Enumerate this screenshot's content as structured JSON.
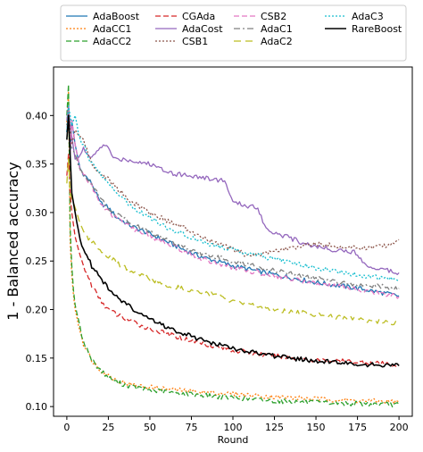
{
  "chart_data": {
    "type": "line",
    "xlabel": "Round",
    "ylabel": "1 - Balanced accuracy",
    "xlim": [
      -8,
      208
    ],
    "ylim": [
      0.09,
      0.45
    ],
    "xticks": [
      0,
      25,
      50,
      75,
      100,
      125,
      150,
      175,
      200
    ],
    "yticks": [
      0.1,
      0.15,
      0.2,
      0.25,
      0.3,
      0.35,
      0.4
    ],
    "legend": "top, outside plot, 4 columns",
    "series": [
      {
        "name": "AdaBoost",
        "color": "#1f77b4",
        "dash": "solid",
        "width": 1.3,
        "points": [
          [
            0,
            0.383
          ],
          [
            1,
            0.405
          ],
          [
            2,
            0.36
          ],
          [
            3,
            0.395
          ],
          [
            5,
            0.37
          ],
          [
            8,
            0.345
          ],
          [
            10,
            0.34
          ],
          [
            15,
            0.33
          ],
          [
            20,
            0.31
          ],
          [
            25,
            0.305
          ],
          [
            30,
            0.295
          ],
          [
            40,
            0.285
          ],
          [
            50,
            0.278
          ],
          [
            60,
            0.27
          ],
          [
            70,
            0.262
          ],
          [
            80,
            0.255
          ],
          [
            100,
            0.245
          ],
          [
            125,
            0.236
          ],
          [
            150,
            0.228
          ],
          [
            175,
            0.222
          ],
          [
            200,
            0.214
          ]
        ]
      },
      {
        "name": "AdaCC1",
        "color": "#ff7f0e",
        "dash": "2,2",
        "width": 1.3,
        "points": [
          [
            0,
            0.393
          ],
          [
            1,
            0.425
          ],
          [
            2,
            0.27
          ],
          [
            3,
            0.235
          ],
          [
            4,
            0.215
          ],
          [
            5,
            0.2
          ],
          [
            8,
            0.178
          ],
          [
            10,
            0.165
          ],
          [
            15,
            0.148
          ],
          [
            20,
            0.138
          ],
          [
            25,
            0.132
          ],
          [
            30,
            0.127
          ],
          [
            40,
            0.122
          ],
          [
            50,
            0.12
          ],
          [
            60,
            0.118
          ],
          [
            80,
            0.115
          ],
          [
            100,
            0.113
          ],
          [
            125,
            0.11
          ],
          [
            150,
            0.108
          ],
          [
            175,
            0.106
          ],
          [
            200,
            0.105
          ]
        ]
      },
      {
        "name": "AdaCC2",
        "color": "#2ca02c",
        "dash": "6,3",
        "width": 1.3,
        "points": [
          [
            0,
            0.4
          ],
          [
            1,
            0.432
          ],
          [
            2,
            0.285
          ],
          [
            3,
            0.245
          ],
          [
            4,
            0.22
          ],
          [
            5,
            0.205
          ],
          [
            8,
            0.18
          ],
          [
            10,
            0.168
          ],
          [
            15,
            0.148
          ],
          [
            20,
            0.138
          ],
          [
            25,
            0.13
          ],
          [
            30,
            0.125
          ],
          [
            40,
            0.12
          ],
          [
            50,
            0.117
          ],
          [
            60,
            0.115
          ],
          [
            80,
            0.112
          ],
          [
            100,
            0.109
          ],
          [
            125,
            0.106
          ],
          [
            150,
            0.104
          ],
          [
            175,
            0.103
          ],
          [
            200,
            0.102
          ]
        ]
      },
      {
        "name": "CGAda",
        "color": "#d62728",
        "dash": "6,3",
        "width": 1.3,
        "points": [
          [
            0,
            0.338
          ],
          [
            1,
            0.36
          ],
          [
            2,
            0.32
          ],
          [
            3,
            0.3
          ],
          [
            5,
            0.275
          ],
          [
            8,
            0.255
          ],
          [
            10,
            0.245
          ],
          [
            15,
            0.225
          ],
          [
            20,
            0.21
          ],
          [
            25,
            0.2
          ],
          [
            30,
            0.195
          ],
          [
            40,
            0.187
          ],
          [
            50,
            0.18
          ],
          [
            60,
            0.175
          ],
          [
            75,
            0.168
          ],
          [
            90,
            0.162
          ],
          [
            100,
            0.158
          ],
          [
            125,
            0.152
          ],
          [
            150,
            0.148
          ],
          [
            175,
            0.146
          ],
          [
            200,
            0.143
          ]
        ]
      },
      {
        "name": "AdaCost",
        "color": "#9467bd",
        "dash": "solid",
        "width": 1.3,
        "points": [
          [
            0,
            0.395
          ],
          [
            1,
            0.41
          ],
          [
            2,
            0.39
          ],
          [
            5,
            0.355
          ],
          [
            8,
            0.36
          ],
          [
            10,
            0.365
          ],
          [
            15,
            0.355
          ],
          [
            20,
            0.368
          ],
          [
            25,
            0.368
          ],
          [
            28,
            0.355
          ],
          [
            35,
            0.355
          ],
          [
            50,
            0.35
          ],
          [
            65,
            0.34
          ],
          [
            75,
            0.338
          ],
          [
            85,
            0.335
          ],
          [
            95,
            0.333
          ],
          [
            100,
            0.31
          ],
          [
            115,
            0.305
          ],
          [
            120,
            0.283
          ],
          [
            140,
            0.27
          ],
          [
            150,
            0.265
          ],
          [
            160,
            0.262
          ],
          [
            170,
            0.26
          ],
          [
            175,
            0.258
          ],
          [
            180,
            0.245
          ],
          [
            190,
            0.242
          ],
          [
            200,
            0.238
          ]
        ]
      },
      {
        "name": "CSB1",
        "color": "#8c564b",
        "dash": "2,2",
        "width": 1.3,
        "points": [
          [
            0,
            0.39
          ],
          [
            1,
            0.405
          ],
          [
            3,
            0.37
          ],
          [
            5,
            0.385
          ],
          [
            10,
            0.375
          ],
          [
            15,
            0.35
          ],
          [
            20,
            0.34
          ],
          [
            25,
            0.335
          ],
          [
            30,
            0.325
          ],
          [
            40,
            0.31
          ],
          [
            50,
            0.3
          ],
          [
            60,
            0.292
          ],
          [
            70,
            0.285
          ],
          [
            80,
            0.275
          ],
          [
            100,
            0.262
          ],
          [
            110,
            0.255
          ],
          [
            125,
            0.26
          ],
          [
            150,
            0.268
          ],
          [
            175,
            0.263
          ],
          [
            190,
            0.265
          ],
          [
            200,
            0.272
          ]
        ]
      },
      {
        "name": "CSB2",
        "color": "#e377c2",
        "dash": "6,3",
        "width": 1.3,
        "points": [
          [
            0,
            0.383
          ],
          [
            1,
            0.405
          ],
          [
            2,
            0.36
          ],
          [
            3,
            0.395
          ],
          [
            5,
            0.37
          ],
          [
            8,
            0.345
          ],
          [
            10,
            0.34
          ],
          [
            15,
            0.328
          ],
          [
            20,
            0.308
          ],
          [
            25,
            0.302
          ],
          [
            30,
            0.293
          ],
          [
            40,
            0.283
          ],
          [
            50,
            0.276
          ],
          [
            60,
            0.268
          ],
          [
            70,
            0.26
          ],
          [
            80,
            0.253
          ],
          [
            100,
            0.243
          ],
          [
            125,
            0.235
          ],
          [
            150,
            0.227
          ],
          [
            175,
            0.221
          ],
          [
            200,
            0.213
          ]
        ]
      },
      {
        "name": "AdaC1",
        "color": "#7f7f7f",
        "dash": "7,3,2,3",
        "width": 1.3,
        "points": [
          [
            0,
            0.383
          ],
          [
            1,
            0.405
          ],
          [
            2,
            0.37
          ],
          [
            5,
            0.36
          ],
          [
            8,
            0.345
          ],
          [
            10,
            0.34
          ],
          [
            15,
            0.33
          ],
          [
            20,
            0.315
          ],
          [
            25,
            0.305
          ],
          [
            30,
            0.298
          ],
          [
            40,
            0.288
          ],
          [
            50,
            0.28
          ],
          [
            60,
            0.272
          ],
          [
            70,
            0.265
          ],
          [
            80,
            0.258
          ],
          [
            100,
            0.25
          ],
          [
            125,
            0.24
          ],
          [
            150,
            0.232
          ],
          [
            175,
            0.226
          ],
          [
            200,
            0.222
          ]
        ]
      },
      {
        "name": "AdaC2",
        "color": "#bcbd22",
        "dash": "8,5",
        "width": 1.3,
        "points": [
          [
            0,
            0.33
          ],
          [
            1,
            0.355
          ],
          [
            2,
            0.32
          ],
          [
            5,
            0.305
          ],
          [
            8,
            0.29
          ],
          [
            10,
            0.28
          ],
          [
            15,
            0.27
          ],
          [
            20,
            0.262
          ],
          [
            25,
            0.255
          ],
          [
            30,
            0.248
          ],
          [
            40,
            0.238
          ],
          [
            50,
            0.232
          ],
          [
            60,
            0.225
          ],
          [
            70,
            0.222
          ],
          [
            80,
            0.218
          ],
          [
            90,
            0.215
          ],
          [
            100,
            0.208
          ],
          [
            125,
            0.2
          ],
          [
            150,
            0.195
          ],
          [
            175,
            0.19
          ],
          [
            200,
            0.185
          ]
        ]
      },
      {
        "name": "AdaC3",
        "color": "#17becf",
        "dash": "2,2",
        "width": 1.3,
        "points": [
          [
            0,
            0.383
          ],
          [
            1,
            0.41
          ],
          [
            3,
            0.39
          ],
          [
            5,
            0.4
          ],
          [
            8,
            0.375
          ],
          [
            10,
            0.37
          ],
          [
            15,
            0.35
          ],
          [
            20,
            0.34
          ],
          [
            25,
            0.33
          ],
          [
            30,
            0.32
          ],
          [
            40,
            0.305
          ],
          [
            50,
            0.295
          ],
          [
            60,
            0.285
          ],
          [
            70,
            0.278
          ],
          [
            80,
            0.27
          ],
          [
            100,
            0.262
          ],
          [
            125,
            0.252
          ],
          [
            150,
            0.243
          ],
          [
            175,
            0.236
          ],
          [
            200,
            0.23
          ]
        ]
      },
      {
        "name": "RareBoost",
        "color": "#000000",
        "dash": "solid",
        "width": 1.6,
        "points": [
          [
            0,
            0.375
          ],
          [
            1,
            0.4
          ],
          [
            2,
            0.36
          ],
          [
            3,
            0.32
          ],
          [
            5,
            0.3
          ],
          [
            7,
            0.28
          ],
          [
            10,
            0.262
          ],
          [
            15,
            0.245
          ],
          [
            20,
            0.232
          ],
          [
            25,
            0.222
          ],
          [
            30,
            0.213
          ],
          [
            40,
            0.2
          ],
          [
            50,
            0.19
          ],
          [
            60,
            0.182
          ],
          [
            75,
            0.172
          ],
          [
            90,
            0.164
          ],
          [
            100,
            0.16
          ],
          [
            125,
            0.152
          ],
          [
            150,
            0.147
          ],
          [
            175,
            0.144
          ],
          [
            200,
            0.142
          ]
        ]
      }
    ]
  }
}
